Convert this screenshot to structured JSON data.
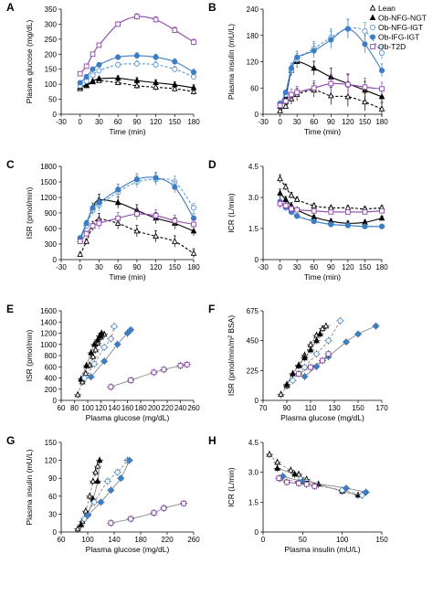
{
  "legend": {
    "entries": [
      {
        "label": "Lean",
        "color": "#000000",
        "marker": "tri-open",
        "dash": "dashed"
      },
      {
        "label": "Ob-NFG-NGT",
        "color": "#000000",
        "marker": "tri-filled",
        "dash": "solid"
      },
      {
        "label": "Ob-NFG-IGT",
        "color": "#5b9bd5",
        "marker": "circle-open",
        "dash": "dashed"
      },
      {
        "label": "Ob-IFG-IGT",
        "color": "#3c7dc4",
        "marker": "circle-filled",
        "dash": "solid"
      },
      {
        "label": "Ob-T2D",
        "color": "#8e44ad",
        "marker": "square-open",
        "dash": "solid"
      }
    ]
  },
  "chart_data": [
    {
      "panel": "A",
      "type": "line",
      "xlabel": "Time (min)",
      "ylabel": "Plasma glucose (mg/dL)",
      "xlim": [
        -30,
        180
      ],
      "ylim": [
        0,
        350
      ],
      "xticks": [
        -30,
        0,
        30,
        60,
        90,
        120,
        150,
        180
      ],
      "yticks": [
        0,
        50,
        100,
        150,
        200,
        250,
        300,
        350
      ],
      "x": [
        0,
        10,
        20,
        30,
        60,
        90,
        120,
        150,
        180
      ],
      "series": [
        {
          "name": "Lean",
          "values": [
            85,
            95,
            108,
            112,
            105,
            95,
            90,
            85,
            75
          ]
        },
        {
          "name": "Ob-NFG-NGT",
          "values": [
            90,
            98,
            110,
            118,
            120,
            112,
            105,
            98,
            88
          ]
        },
        {
          "name": "Ob-NFG-IGT",
          "values": [
            95,
            110,
            130,
            145,
            165,
            168,
            165,
            150,
            125
          ]
        },
        {
          "name": "Ob-IFG-IGT",
          "values": [
            105,
            125,
            150,
            165,
            190,
            195,
            190,
            175,
            140
          ]
        },
        {
          "name": "Ob-T2D",
          "values": [
            135,
            160,
            200,
            230,
            300,
            325,
            315,
            280,
            240
          ]
        }
      ],
      "errors": [
        5,
        5,
        5,
        6,
        8,
        10,
        10,
        10,
        10
      ]
    },
    {
      "panel": "B",
      "type": "line",
      "xlabel": "Time (min)",
      "ylabel": "Plasma insulin (mU/L)",
      "xlim": [
        -30,
        180
      ],
      "ylim": [
        0,
        240
      ],
      "xticks": [
        -30,
        0,
        30,
        60,
        90,
        120,
        150,
        180
      ],
      "yticks": [
        0,
        60,
        120,
        180,
        240
      ],
      "x": [
        0,
        10,
        20,
        30,
        60,
        90,
        120,
        150,
        180
      ],
      "series": [
        {
          "name": "Lean",
          "values": [
            8,
            18,
            35,
            45,
            55,
            42,
            40,
            28,
            12
          ]
        },
        {
          "name": "Ob-NFG-NGT",
          "values": [
            18,
            40,
            100,
            120,
            105,
            85,
            70,
            55,
            40
          ]
        },
        {
          "name": "Ob-NFG-IGT",
          "values": [
            22,
            45,
            100,
            125,
            150,
            175,
            195,
            190,
            140
          ]
        },
        {
          "name": "Ob-IFG-IGT",
          "values": [
            25,
            50,
            105,
            130,
            145,
            170,
            195,
            160,
            100
          ]
        },
        {
          "name": "Ob-T2D",
          "values": [
            20,
            30,
            45,
            50,
            60,
            70,
            68,
            62,
            58
          ]
        }
      ],
      "errors": [
        3,
        5,
        12,
        14,
        16,
        20,
        22,
        20,
        15
      ]
    },
    {
      "panel": "C",
      "type": "line",
      "xlabel": "Time (min)",
      "ylabel": "ISR (pmol/min)",
      "xlim": [
        -30,
        180
      ],
      "ylim": [
        0,
        1800
      ],
      "xticks": [
        -30,
        0,
        30,
        60,
        90,
        120,
        150,
        180
      ],
      "yticks": [
        0,
        300,
        600,
        900,
        1200,
        1500,
        1800
      ],
      "x": [
        0,
        10,
        20,
        30,
        60,
        90,
        120,
        150,
        180
      ],
      "series": [
        {
          "name": "Lean",
          "values": [
            100,
            350,
            650,
            780,
            700,
            550,
            450,
            350,
            120
          ]
        },
        {
          "name": "Ob-NFG-NGT",
          "values": [
            380,
            700,
            1000,
            1150,
            1100,
            950,
            800,
            700,
            550
          ]
        },
        {
          "name": "Ob-NFG-IGT",
          "values": [
            400,
            650,
            950,
            1050,
            1300,
            1500,
            1550,
            1500,
            1000
          ]
        },
        {
          "name": "Ob-IFG-IGT",
          "values": [
            420,
            700,
            1000,
            1100,
            1350,
            1550,
            1580,
            1400,
            800
          ]
        },
        {
          "name": "Ob-T2D",
          "values": [
            350,
            500,
            650,
            700,
            800,
            880,
            850,
            750,
            680
          ]
        }
      ],
      "errors": [
        30,
        50,
        90,
        110,
        110,
        110,
        110,
        110,
        90
      ]
    },
    {
      "panel": "D",
      "type": "line",
      "xlabel": "Time (min)",
      "ylabel": "ICR (L/min)",
      "xlim": [
        -30,
        180
      ],
      "ylim": [
        0,
        4.5
      ],
      "xticks": [
        -30,
        0,
        30,
        60,
        90,
        120,
        150,
        180
      ],
      "yticks": [
        0,
        1.5,
        3.0,
        4.5
      ],
      "ytick_labels": [
        "0",
        "1.5",
        "3.0",
        "4.5"
      ],
      "x": [
        0,
        10,
        20,
        30,
        60,
        90,
        120,
        150,
        180
      ],
      "series": [
        {
          "name": "Lean",
          "values": [
            3.9,
            3.5,
            3.1,
            2.9,
            2.6,
            2.5,
            2.5,
            2.45,
            2.5
          ]
        },
        {
          "name": "Ob-NFG-NGT",
          "values": [
            3.2,
            2.9,
            2.6,
            2.4,
            2.05,
            1.85,
            1.75,
            1.8,
            2.0
          ]
        },
        {
          "name": "Ob-NFG-IGT",
          "values": [
            2.7,
            2.5,
            2.3,
            2.1,
            1.85,
            1.7,
            1.65,
            1.6,
            1.6
          ]
        },
        {
          "name": "Ob-IFG-IGT",
          "values": [
            2.8,
            2.55,
            2.3,
            2.1,
            1.85,
            1.7,
            1.65,
            1.6,
            1.6
          ]
        },
        {
          "name": "Ob-T2D",
          "values": [
            2.7,
            2.6,
            2.45,
            2.4,
            2.35,
            2.3,
            2.3,
            2.3,
            2.35
          ]
        }
      ],
      "errors": [
        0.2,
        0.15,
        0.15,
        0.12,
        0.1,
        0.1,
        0.1,
        0.1,
        0.1
      ]
    },
    {
      "panel": "E",
      "type": "scatter",
      "xlabel": "Plasma glucose (mg/dL)",
      "ylabel": "ISR (pmol/min)",
      "xlim": [
        60,
        260
      ],
      "ylim": [
        0,
        1600
      ],
      "xticks": [
        60,
        80,
        100,
        120,
        140,
        160,
        180,
        200,
        220,
        240,
        260
      ],
      "yticks": [
        0,
        200,
        400,
        600,
        800,
        1000,
        1200,
        1400,
        1600
      ],
      "series": [
        {
          "name": "Lean",
          "points": [
            [
              85,
              100
            ],
            [
              92,
              330
            ],
            [
              97,
              480
            ],
            [
              103,
              630
            ],
            [
              108,
              780
            ],
            [
              112,
              900
            ],
            [
              115,
              1020
            ],
            [
              120,
              1130
            ],
            [
              125,
              1180
            ]
          ]
        },
        {
          "name": "Ob-NFG-NGT",
          "points": [
            [
              90,
              380
            ],
            [
              98,
              620
            ],
            [
              105,
              850
            ],
            [
              110,
              1000
            ],
            [
              115,
              1080
            ],
            [
              118,
              1150
            ],
            [
              121,
              1200
            ]
          ]
        },
        {
          "name": "Ob-NFG-IGT",
          "points": [
            [
              95,
              400
            ],
            [
              110,
              650
            ],
            [
              125,
              950
            ],
            [
              135,
              1100
            ],
            [
              140,
              1320
            ]
          ]
        },
        {
          "name": "Ob-IFG-IGT",
          "points": [
            [
              105,
              420
            ],
            [
              125,
              700
            ],
            [
              145,
              1000
            ],
            [
              160,
              1200
            ],
            [
              165,
              1260
            ]
          ]
        },
        {
          "name": "Ob-T2D",
          "points": [
            [
              135,
              240
            ],
            [
              165,
              360
            ],
            [
              200,
              500
            ],
            [
              215,
              550
            ],
            [
              240,
              620
            ],
            [
              250,
              640
            ]
          ]
        }
      ]
    },
    {
      "panel": "F",
      "type": "scatter",
      "xlabel": "Plasma glucose (mg/dL)",
      "ylabel": "ISR (pmol/min/m² BSA)",
      "xlim": [
        70,
        170
      ],
      "ylim": [
        0,
        675
      ],
      "xticks": [
        70,
        90,
        110,
        130,
        150,
        170
      ],
      "yticks": [
        0,
        225,
        450,
        675
      ],
      "series": [
        {
          "name": "Lean",
          "points": [
            [
              85,
              45
            ],
            [
              90,
              110
            ],
            [
              95,
              200
            ],
            [
              100,
              265
            ],
            [
              105,
              340
            ],
            [
              110,
              420
            ],
            [
              115,
              490
            ],
            [
              120,
              540
            ],
            [
              123,
              560
            ]
          ]
        },
        {
          "name": "Ob-NFG-NGT",
          "points": [
            [
              90,
              120
            ],
            [
              95,
              200
            ],
            [
              100,
              260
            ],
            [
              105,
              320
            ],
            [
              110,
              380
            ],
            [
              115,
              450
            ],
            [
              118,
              500
            ]
          ]
        },
        {
          "name": "Ob-NFG-IGT",
          "points": [
            [
              95,
              150
            ],
            [
              105,
              250
            ],
            [
              115,
              350
            ],
            [
              125,
              450
            ],
            [
              135,
              600
            ]
          ]
        },
        {
          "name": "Ob-IFG-IGT",
          "points": [
            [
              105,
              180
            ],
            [
              115,
              255
            ],
            [
              125,
              330
            ],
            [
              140,
              440
            ],
            [
              150,
              500
            ],
            [
              165,
              560
            ]
          ]
        },
        {
          "name": "Ob-T2D",
          "points": [
            [
              100,
              200
            ],
            [
              110,
              250
            ],
            [
              120,
              300
            ],
            [
              125,
              350
            ]
          ]
        }
      ]
    },
    {
      "panel": "G",
      "type": "scatter",
      "xlabel": "Plasma glucose (mg/dL)",
      "ylabel": "Plasma insulin (mU/L)",
      "xlim": [
        60,
        260
      ],
      "ylim": [
        0,
        150
      ],
      "xticks": [
        60,
        100,
        140,
        180,
        220,
        260
      ],
      "yticks": [
        0,
        30,
        60,
        90,
        120,
        150
      ],
      "series": [
        {
          "name": "Lean",
          "points": [
            [
              85,
              5
            ],
            [
              92,
              18
            ],
            [
              97,
              35
            ],
            [
              103,
              60
            ],
            [
              108,
              85
            ],
            [
              112,
              100
            ],
            [
              115,
              110
            ]
          ]
        },
        {
          "name": "Ob-NFG-NGT",
          "points": [
            [
              90,
              12
            ],
            [
              100,
              30
            ],
            [
              108,
              55
            ],
            [
              115,
              85
            ],
            [
              118,
              120
            ]
          ]
        },
        {
          "name": "Ob-NFG-IGT",
          "points": [
            [
              95,
              22
            ],
            [
              110,
              50
            ],
            [
              130,
              85
            ],
            [
              145,
              100
            ],
            [
              160,
              120
            ]
          ]
        },
        {
          "name": "Ob-IFG-IGT",
          "points": [
            [
              100,
              28
            ],
            [
              120,
              50
            ],
            [
              135,
              70
            ],
            [
              150,
              90
            ],
            [
              163,
              120
            ]
          ]
        },
        {
          "name": "Ob-T2D",
          "points": [
            [
              135,
              15
            ],
            [
              165,
              22
            ],
            [
              200,
              32
            ],
            [
              215,
              40
            ],
            [
              245,
              48
            ]
          ]
        }
      ]
    },
    {
      "panel": "H",
      "type": "scatter",
      "xlabel": "Plasma insulin (mU/L)",
      "ylabel": "ICR (L/min)",
      "xlim": [
        0,
        150
      ],
      "ylim": [
        0,
        4.5
      ],
      "xticks": [
        0,
        50,
        100,
        150
      ],
      "yticks": [
        0,
        1.5,
        3.0,
        4.5
      ],
      "ytick_labels": [
        "0",
        "1.5",
        "3.0",
        "4.5"
      ],
      "series": [
        {
          "name": "Lean",
          "points": [
            [
              8,
              3.9
            ],
            [
              18,
              3.5
            ],
            [
              35,
              3.1
            ],
            [
              45,
              2.9
            ],
            [
              55,
              2.65
            ]
          ]
        },
        {
          "name": "Ob-NFG-NGT",
          "points": [
            [
              18,
              3.2
            ],
            [
              40,
              2.9
            ],
            [
              70,
              2.4
            ],
            [
              100,
              2.05
            ],
            [
              120,
              1.85
            ]
          ]
        },
        {
          "name": "Ob-NFG-IGT",
          "points": [
            [
              22,
              2.7
            ],
            [
              45,
              2.5
            ],
            [
              100,
              2.1
            ],
            [
              125,
              1.85
            ]
          ]
        },
        {
          "name": "Ob-IFG-IGT",
          "points": [
            [
              25,
              2.8
            ],
            [
              50,
              2.55
            ],
            [
              105,
              2.2
            ],
            [
              130,
              2.0
            ]
          ]
        },
        {
          "name": "Ob-T2D",
          "points": [
            [
              20,
              2.7
            ],
            [
              30,
              2.5
            ],
            [
              45,
              2.45
            ],
            [
              55,
              2.4
            ],
            [
              65,
              2.3
            ]
          ]
        }
      ]
    }
  ]
}
